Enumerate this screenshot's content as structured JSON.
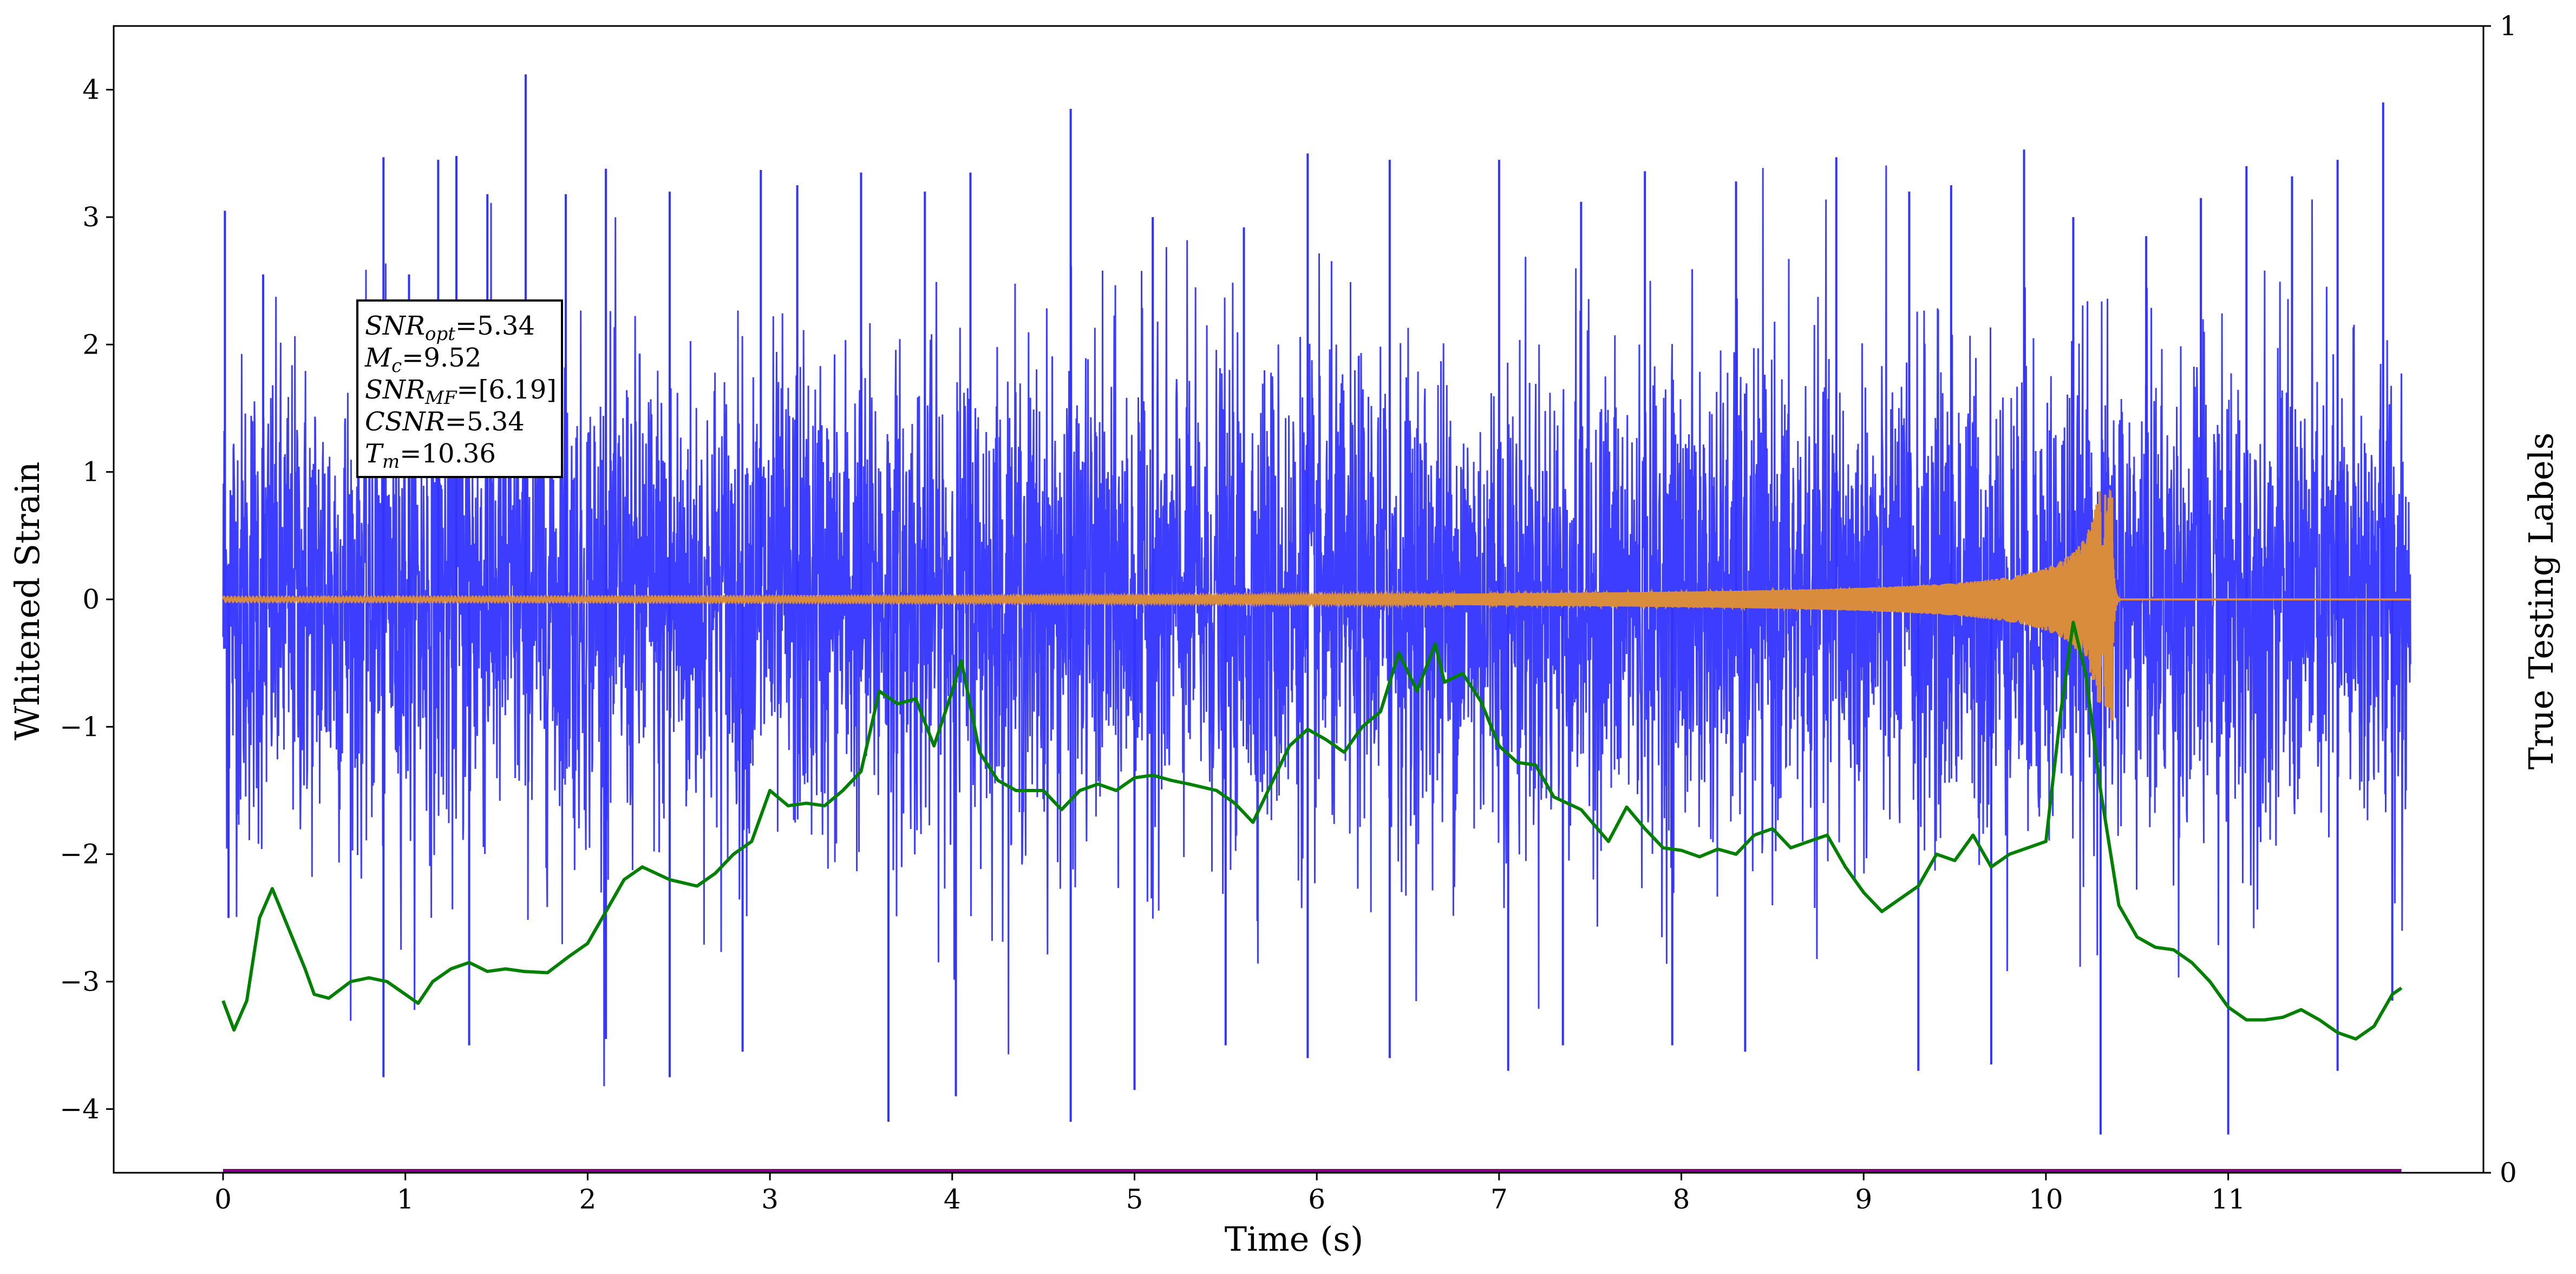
{
  "chart_data": {
    "type": "line",
    "xlabel": "Time (s)",
    "ylabel": "Whitened Strain",
    "y2label": "True Testing Labels",
    "xlim": [
      -0.6,
      12.4
    ],
    "ylim": [
      -4.5,
      4.5
    ],
    "y2lim": [
      0,
      1
    ],
    "x_ticks": [
      0,
      1,
      2,
      3,
      4,
      5,
      6,
      7,
      8,
      9,
      10,
      11
    ],
    "y_ticks": [
      -4,
      -3,
      -2,
      -1,
      0,
      1,
      2,
      3,
      4
    ],
    "y_tick_labels": [
      "−4",
      "−3",
      "−2",
      "−1",
      "0",
      "1",
      "2",
      "3",
      "4"
    ],
    "y2_ticks": [
      0,
      1
    ],
    "grid": false,
    "annotation": [
      {
        "base": "SNR",
        "sub": "opt",
        "value": "=5.34"
      },
      {
        "base": "M",
        "sub": "c",
        "value": "=9.52"
      },
      {
        "base": "SNR",
        "sub": "MF",
        "value": "=[6.19]"
      },
      {
        "base": "CSNR",
        "sub": "",
        "value": "=5.34"
      },
      {
        "base": "T",
        "sub": "m",
        "value": "=10.36"
      }
    ],
    "series": [
      {
        "color": "#3333ff",
        "kind": "noise",
        "x_range": [
          0,
          12
        ],
        "envelope": {
          "min": -4.2,
          "max": 4.12
        },
        "spikes": [
          [
            0.01,
            3.05
          ],
          [
            0.22,
            2.55
          ],
          [
            0.88,
            3.47
          ],
          [
            1.02,
            2.55
          ],
          [
            1.18,
            3.45
          ],
          [
            1.28,
            3.48
          ],
          [
            1.45,
            3.18
          ],
          [
            1.66,
            4.12
          ],
          [
            1.88,
            3.18
          ],
          [
            2.1,
            3.38
          ],
          [
            2.45,
            3.2
          ],
          [
            2.95,
            3.37
          ],
          [
            3.15,
            3.25
          ],
          [
            3.5,
            3.35
          ],
          [
            3.85,
            3.2
          ],
          [
            4.1,
            3.35
          ],
          [
            4.65,
            3.85
          ],
          [
            5.1,
            3.0
          ],
          [
            5.6,
            2.92
          ],
          [
            5.95,
            3.5
          ],
          [
            6.4,
            3.45
          ],
          [
            7.0,
            3.45
          ],
          [
            7.45,
            3.12
          ],
          [
            7.8,
            3.36
          ],
          [
            8.3,
            3.28
          ],
          [
            8.85,
            3.47
          ],
          [
            9.25,
            3.2
          ],
          [
            9.48,
            3.25
          ],
          [
            9.88,
            3.53
          ],
          [
            10.15,
            3.0
          ],
          [
            10.55,
            2.85
          ],
          [
            10.85,
            3.15
          ],
          [
            11.1,
            3.4
          ],
          [
            11.35,
            3.32
          ],
          [
            11.6,
            3.45
          ],
          [
            11.85,
            3.9
          ],
          [
            0.03,
            -2.5
          ],
          [
            0.88,
            -3.75
          ],
          [
            1.35,
            -3.5
          ],
          [
            2.1,
            -3.45
          ],
          [
            2.45,
            -3.75
          ],
          [
            2.85,
            -3.55
          ],
          [
            3.65,
            -4.1
          ],
          [
            4.02,
            -3.9
          ],
          [
            4.65,
            -4.1
          ],
          [
            5.0,
            -3.85
          ],
          [
            5.5,
            -3.5
          ],
          [
            5.95,
            -3.6
          ],
          [
            6.4,
            -3.6
          ],
          [
            7.05,
            -3.7
          ],
          [
            7.35,
            -3.5
          ],
          [
            7.95,
            -3.5
          ],
          [
            8.35,
            -3.55
          ],
          [
            9.3,
            -3.7
          ],
          [
            9.7,
            -3.65
          ],
          [
            10.3,
            -4.2
          ],
          [
            11.0,
            -4.2
          ],
          [
            11.6,
            -3.7
          ],
          [
            11.9,
            -3.15
          ]
        ]
      },
      {
        "color": "#d98c3b",
        "kind": "chirp",
        "x_range": [
          0,
          12
        ],
        "merger_time": 10.36,
        "amplitude_start": 0.02,
        "peak_max": 0.8,
        "peak_min": -0.95
      },
      {
        "color": "#008000",
        "kind": "line",
        "x": [
          0.0,
          0.06,
          0.13,
          0.2,
          0.27,
          0.35,
          0.45,
          0.5,
          0.58,
          0.7,
          0.8,
          0.9,
          1.0,
          1.07,
          1.15,
          1.25,
          1.35,
          1.45,
          1.55,
          1.65,
          1.78,
          1.9,
          2.0,
          2.1,
          2.2,
          2.3,
          2.45,
          2.6,
          2.7,
          2.8,
          2.9,
          3.0,
          3.1,
          3.2,
          3.3,
          3.4,
          3.5,
          3.6,
          3.7,
          3.8,
          3.9,
          4.0,
          4.05,
          4.15,
          4.25,
          4.35,
          4.5,
          4.6,
          4.7,
          4.8,
          4.9,
          5.0,
          5.1,
          5.2,
          5.3,
          5.45,
          5.55,
          5.65,
          5.75,
          5.85,
          5.95,
          6.05,
          6.15,
          6.25,
          6.35,
          6.45,
          6.55,
          6.65,
          6.7,
          6.8,
          6.9,
          7.0,
          7.1,
          7.2,
          7.3,
          7.45,
          7.6,
          7.7,
          7.8,
          7.9,
          8.0,
          8.1,
          8.2,
          8.3,
          8.4,
          8.5,
          8.6,
          8.7,
          8.8,
          8.9,
          9.0,
          9.1,
          9.2,
          9.3,
          9.4,
          9.5,
          9.6,
          9.7,
          9.8,
          9.9,
          10.0,
          10.08,
          10.15,
          10.22,
          10.3,
          10.4,
          10.5,
          10.6,
          10.7,
          10.8,
          10.9,
          11.0,
          11.1,
          11.2,
          11.3,
          11.4,
          11.5,
          11.6,
          11.7,
          11.8,
          11.9,
          11.95
        ],
        "y": [
          -3.15,
          -3.38,
          -3.15,
          -2.5,
          -2.27,
          -2.55,
          -2.9,
          -3.1,
          -3.13,
          -3.0,
          -2.97,
          -3.0,
          -3.1,
          -3.17,
          -3.0,
          -2.9,
          -2.85,
          -2.92,
          -2.9,
          -2.92,
          -2.93,
          -2.8,
          -2.7,
          -2.45,
          -2.2,
          -2.1,
          -2.2,
          -2.25,
          -2.15,
          -2.0,
          -1.9,
          -1.5,
          -1.62,
          -1.6,
          -1.62,
          -1.5,
          -1.35,
          -0.72,
          -0.82,
          -0.78,
          -1.15,
          -0.72,
          -0.48,
          -1.2,
          -1.42,
          -1.5,
          -1.5,
          -1.65,
          -1.5,
          -1.45,
          -1.5,
          -1.4,
          -1.38,
          -1.42,
          -1.45,
          -1.5,
          -1.6,
          -1.75,
          -1.45,
          -1.15,
          -1.02,
          -1.1,
          -1.2,
          -1.0,
          -0.88,
          -0.42,
          -0.72,
          -0.35,
          -0.65,
          -0.58,
          -0.8,
          -1.15,
          -1.28,
          -1.3,
          -1.55,
          -1.65,
          -1.9,
          -1.63,
          -1.8,
          -1.95,
          -1.97,
          -2.02,
          -1.96,
          -2.0,
          -1.85,
          -1.8,
          -1.95,
          -1.9,
          -1.85,
          -2.1,
          -2.3,
          -2.45,
          -2.35,
          -2.25,
          -2.0,
          -2.05,
          -1.85,
          -2.1,
          -2.0,
          -1.95,
          -1.9,
          -0.9,
          -0.18,
          -0.6,
          -1.5,
          -2.4,
          -2.65,
          -2.73,
          -2.75,
          -2.85,
          -3.0,
          -3.2,
          -3.3,
          -3.3,
          -3.28,
          -3.22,
          -3.3,
          -3.4,
          -3.45,
          -3.35,
          -3.1,
          -3.05
        ]
      },
      {
        "color": "#800080",
        "kind": "label",
        "axis": "right",
        "x": [
          0.0,
          11.95
        ],
        "y": [
          0.0,
          0.0
        ]
      }
    ]
  }
}
